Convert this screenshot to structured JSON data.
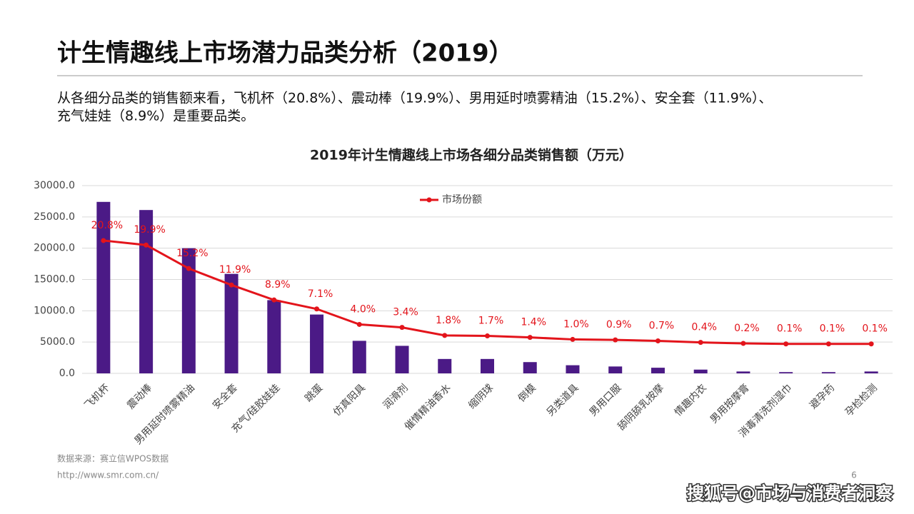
{
  "slide": {
    "title": "计生情趣线上市场潜力品类分析（2019）",
    "description_lines": [
      "从各细分品类的销售额来看，飞机杯（20.8%）、震动棒（19.9%）、男用延时喷雾精油（15.2%）、安全套（11.9%）、",
      "充气娃娃（8.9%）是重要品类。"
    ],
    "source": "数据来源：赛立信WPOS数据",
    "url": "http://www.smr.com.cn/",
    "page_number": "6",
    "watermark": "搜狐号@市场与消费者洞察"
  },
  "chart_data": {
    "type": "bar",
    "title": "2019年计生情趣线上市场各细分品类销售额（万元）",
    "categories": [
      "飞机杯",
      "震动棒",
      "男用延时喷雾精油",
      "安全套",
      "充气/硅胶娃娃",
      "跳蛋",
      "仿真阳具",
      "润滑剂",
      "催情精油香水",
      "缩阴球",
      "倒模",
      "另类道具",
      "男用口服",
      "舔阴舔乳按摩",
      "情趣内衣",
      "男用按摩膏",
      "消毒清洗剂湿巾",
      "避孕药",
      "孕检检测"
    ],
    "series": [
      {
        "color": "#4b1a86",
        "values": [
          27400,
          26100,
          20000,
          15900,
          11700,
          9400,
          5200,
          4400,
          2300,
          2300,
          1800,
          1300,
          1100,
          900,
          600,
          300,
          200,
          200,
          300
        ]
      },
      {
        "name": "市场份额",
        "type": "line",
        "axis": "y2",
        "color": "#e3141b",
        "values": [
          20.8,
          19.9,
          15.2,
          11.9,
          8.9,
          7.1,
          4.0,
          3.4,
          1.8,
          1.7,
          1.4,
          1.0,
          0.9,
          0.7,
          0.4,
          0.2,
          0.1,
          0.1,
          0.1
        ],
        "value_labels": [
          "20.8%",
          "19.9%",
          "15.2%",
          "11.9%",
          "8.9%",
          "7.1%",
          "4.0%",
          "3.4%",
          "1.8%",
          "1.7%",
          "1.4%",
          "1.0%",
          "0.9%",
          "0.7%",
          "0.4%",
          "0.2%",
          "0.1%",
          "0.1%",
          "0.1%"
        ]
      }
    ],
    "ylim": [
      0,
      30000
    ],
    "yticks": [
      {
        "value": 0,
        "label": "0.0"
      },
      {
        "value": 5000,
        "label": "5000.0"
      },
      {
        "value": 10000,
        "label": "10000.0"
      },
      {
        "value": 15000,
        "label": "15000.0"
      },
      {
        "value": 20000,
        "label": "20000.0"
      },
      {
        "value": 25000,
        "label": "25000.0"
      },
      {
        "value": 30000,
        "label": "30000.0"
      }
    ],
    "y2lim": [
      -5.8,
      31.8
    ],
    "grid": true,
    "legend": "top"
  }
}
